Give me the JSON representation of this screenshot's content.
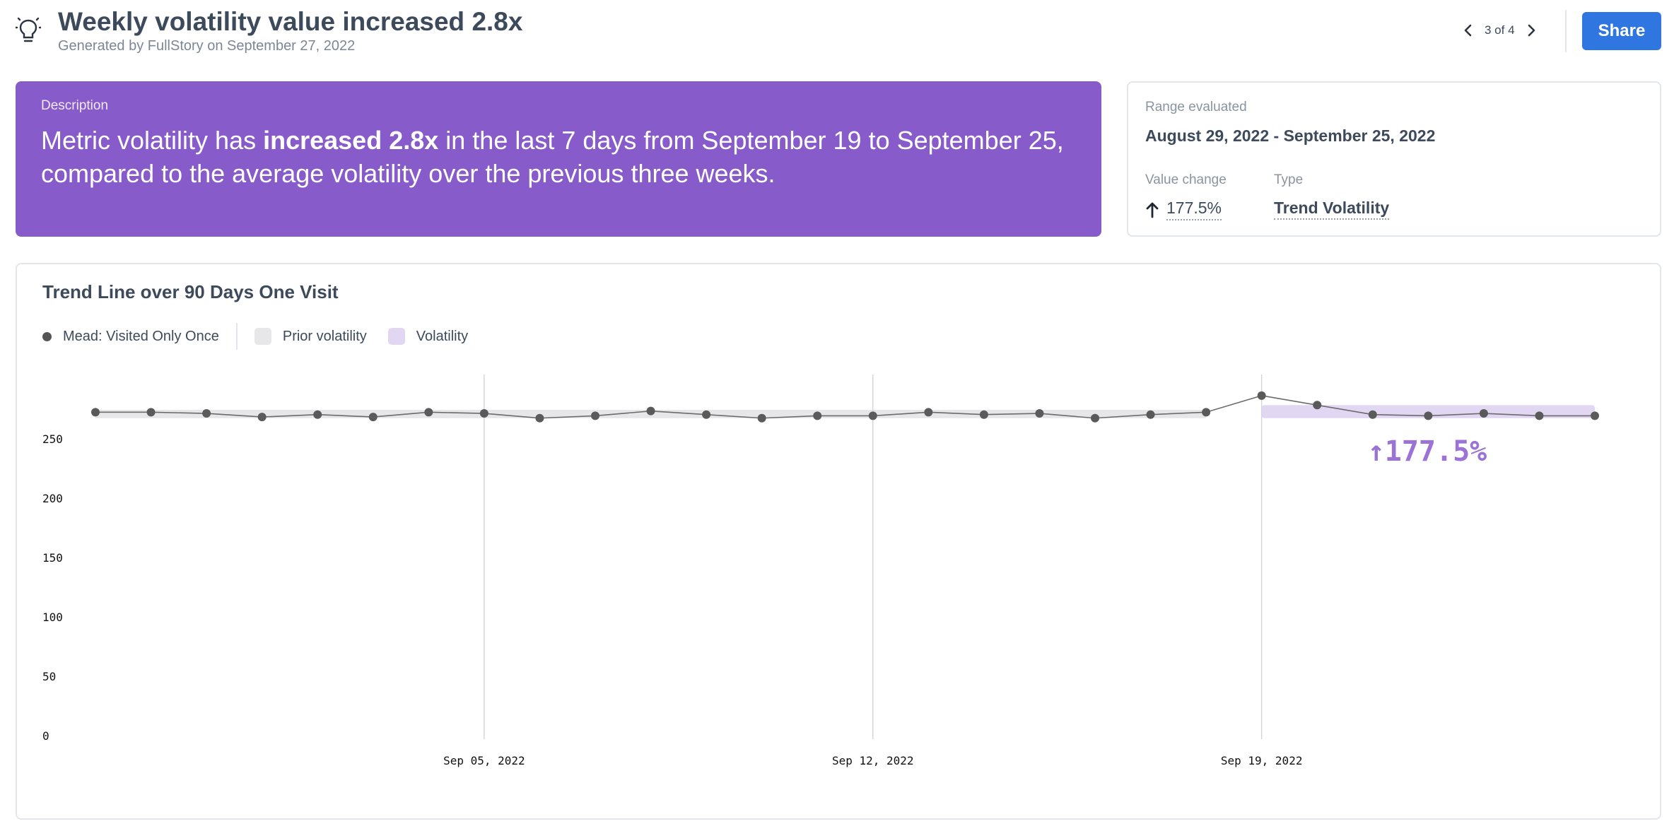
{
  "header": {
    "title": "Weekly volatility value increased 2.8x",
    "subtitle": "Generated by FullStory on September 27, 2022",
    "pager": "3 of 4",
    "share_label": "Share",
    "icons": {
      "insight": "lightbulb-icon",
      "prev": "chevron-left-icon",
      "next": "chevron-right-icon"
    }
  },
  "description": {
    "label": "Description",
    "text_before": "Metric volatility has ",
    "text_bold": "increased 2.8x",
    "text_after": " in the last 7 days from September 19 to September 25, compared to the average volatility over the previous three weeks."
  },
  "info": {
    "range_label": "Range evaluated",
    "range_value": "August 29, 2022 - September 25, 2022",
    "change_label": "Value change",
    "change_value": "177.5%",
    "change_icon": "arrow-up-icon",
    "type_label": "Type",
    "type_value": "Trend Volatility"
  },
  "chart_card": {
    "title": "Trend Line over 90 Days One Visit",
    "legend": {
      "series": "Mead: Visited Only Once",
      "prior": "Prior volatility",
      "volatility": "Volatility"
    },
    "annotation": "↑177.5%"
  },
  "colors": {
    "accent": "#875bc9",
    "share": "#2f76e0",
    "series": "#5a5a5a",
    "prior_band": "#e7e7e9",
    "volatility_band": "#e2d7f3",
    "annotation": "#9b73d6"
  },
  "chart_data": {
    "type": "line",
    "title": "Trend Line over 90 Days One Visit",
    "xlabel": "",
    "ylabel": "",
    "ylim": [
      0,
      300
    ],
    "yticks": [
      0,
      50,
      100,
      150,
      200,
      250
    ],
    "xticks": [
      "Sep 05, 2022",
      "Sep 12, 2022",
      "Sep 19, 2022"
    ],
    "x": [
      "Aug 29, 2022",
      "Aug 30, 2022",
      "Aug 31, 2022",
      "Sep 01, 2022",
      "Sep 02, 2022",
      "Sep 03, 2022",
      "Sep 04, 2022",
      "Sep 05, 2022",
      "Sep 06, 2022",
      "Sep 07, 2022",
      "Sep 08, 2022",
      "Sep 09, 2022",
      "Sep 10, 2022",
      "Sep 11, 2022",
      "Sep 12, 2022",
      "Sep 13, 2022",
      "Sep 14, 2022",
      "Sep 15, 2022",
      "Sep 16, 2022",
      "Sep 17, 2022",
      "Sep 18, 2022",
      "Sep 19, 2022",
      "Sep 20, 2022",
      "Sep 21, 2022",
      "Sep 22, 2022",
      "Sep 23, 2022",
      "Sep 24, 2022",
      "Sep 25, 2022"
    ],
    "series": [
      {
        "name": "Mead: Visited Only Once",
        "values": [
          273,
          273,
          272,
          269,
          271,
          269,
          273,
          272,
          268,
          270,
          274,
          271,
          268,
          270,
          270,
          273,
          271,
          272,
          268,
          271,
          273,
          287,
          279,
          271,
          270,
          272,
          270,
          270
        ]
      }
    ],
    "bands": [
      {
        "name": "Prior volatility",
        "x_start": "Aug 29, 2022",
        "x_end": "Sep 18, 2022",
        "y_low": 268,
        "y_high": 275
      },
      {
        "name": "Volatility",
        "x_start": "Sep 19, 2022",
        "x_end": "Sep 25, 2022",
        "y_low": 268,
        "y_high": 279
      }
    ],
    "annotation": "↑177.5%",
    "grid": "vertical at x ticks",
    "legend_position": "top-left"
  }
}
